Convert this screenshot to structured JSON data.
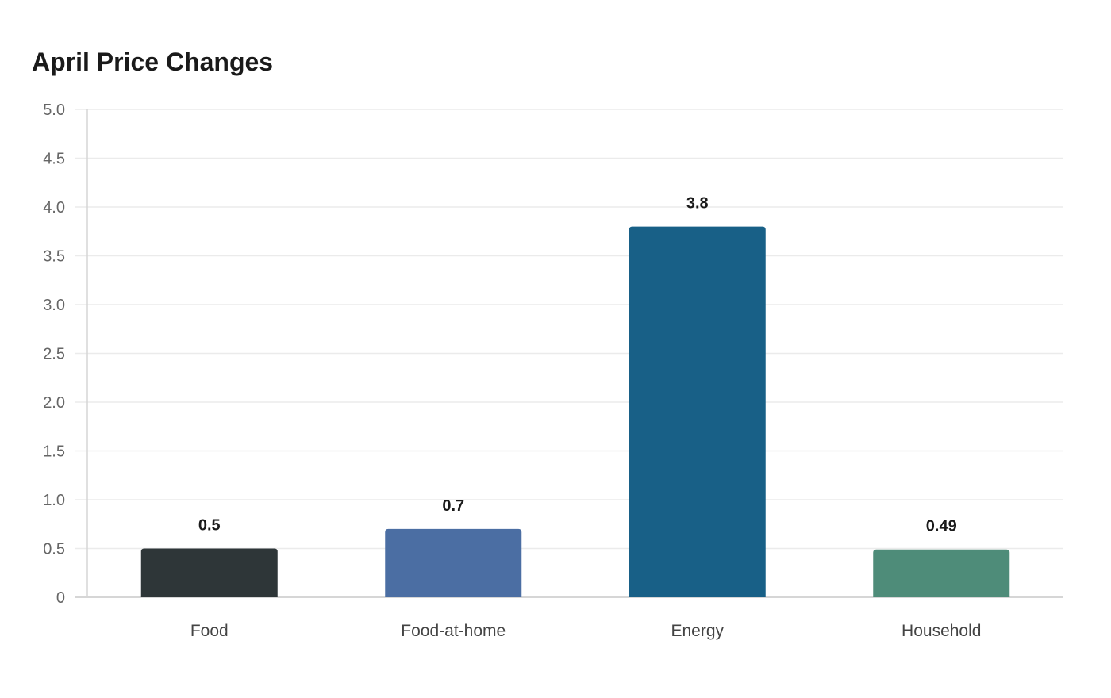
{
  "chart_data": {
    "type": "bar",
    "title": "April Price Changes",
    "xlabel": "",
    "ylabel": "",
    "categories": [
      "Food",
      "Food-at-home",
      "Energy",
      "Household"
    ],
    "values": [
      0.5,
      0.7,
      3.8,
      0.49
    ],
    "value_labels": [
      "0.5",
      "0.7",
      "3.8",
      "0.49"
    ],
    "colors": [
      "#2e3638",
      "#4b6ea3",
      "#186087",
      "#4e8c79"
    ],
    "ylim": [
      0,
      5
    ],
    "yticks": [
      0,
      0.5,
      1.0,
      1.5,
      2.0,
      2.5,
      3.0,
      3.5,
      4.0,
      4.5,
      5.0
    ],
    "ytick_labels": [
      "0",
      "0.5",
      "1.0",
      "1.5",
      "2.0",
      "2.5",
      "3.0",
      "3.5",
      "4.0",
      "4.5",
      "5.0"
    ],
    "grid": true,
    "legend": "none",
    "gridline_color": "#ebebeb",
    "axis_color": "#d6d6d6"
  }
}
